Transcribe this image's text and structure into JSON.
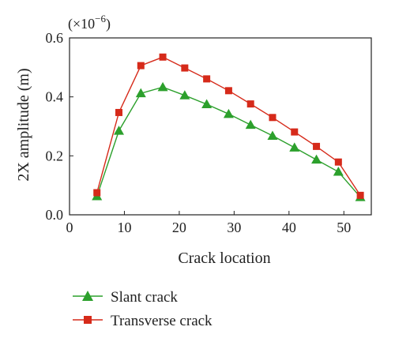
{
  "chart_data": {
    "type": "line",
    "title": "",
    "xlabel": "Crack location",
    "ylabel": "2X amplitude (m)",
    "y_multiplier_label": "(×10",
    "y_multiplier_exp": "−6",
    "y_multiplier_close": ")",
    "xlim": [
      0,
      55
    ],
    "ylim": [
      0,
      0.6
    ],
    "xticks": [
      0,
      10,
      20,
      30,
      40,
      50
    ],
    "yticks": [
      0.0,
      0.2,
      0.4,
      0.6
    ],
    "xtick_labels": [
      "0",
      "10",
      "20",
      "30",
      "40",
      "50"
    ],
    "ytick_labels": [
      "0.0",
      "0.2",
      "0.4",
      "0.6"
    ],
    "grid": false,
    "legend_position": "bottom-left, below plot",
    "x": [
      5,
      9,
      13,
      17,
      21,
      25,
      29,
      33,
      37,
      41,
      45,
      49,
      53
    ],
    "series": [
      {
        "name": "Slant crack",
        "marker": "triangle",
        "color": "#2ca02c",
        "values": [
          0.063,
          0.285,
          0.412,
          0.433,
          0.405,
          0.375,
          0.342,
          0.305,
          0.268,
          0.228,
          0.187,
          0.146,
          0.06
        ]
      },
      {
        "name": "Transverse crack",
        "marker": "square",
        "color": "#d62a1a",
        "values": [
          0.075,
          0.347,
          0.506,
          0.535,
          0.498,
          0.461,
          0.421,
          0.376,
          0.33,
          0.281,
          0.232,
          0.179,
          0.066
        ]
      }
    ]
  }
}
